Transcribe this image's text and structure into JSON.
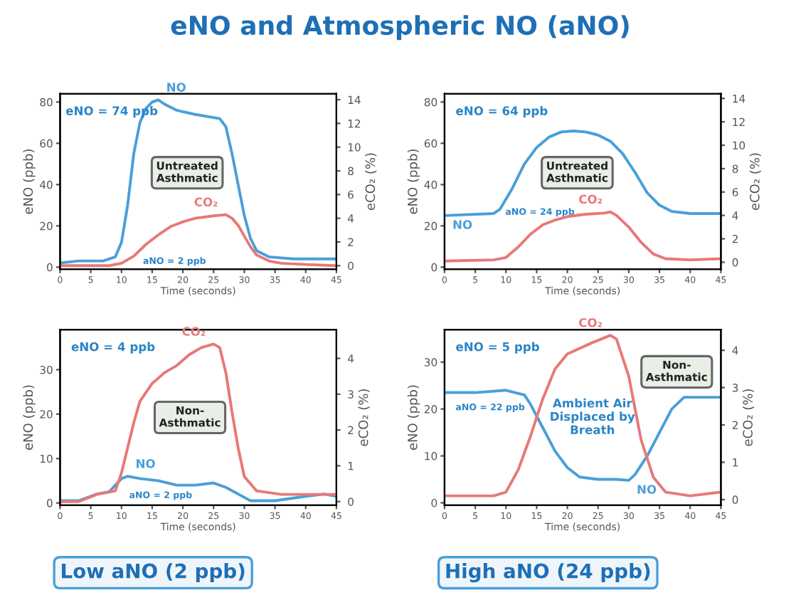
{
  "chart_data": [
    {
      "type": "line",
      "title": "eNO and Atmospheric NO (aNO)",
      "xlabel": "Time (seconds)",
      "ylabel": "eNO (ppb)",
      "y2label": "eCO₂ (%)",
      "xlim": [
        0,
        45
      ],
      "xticks": [
        0,
        5,
        10,
        15,
        20,
        25,
        30,
        35,
        40,
        45
      ],
      "ylim": [
        -1,
        84
      ],
      "yticks": [
        0,
        20,
        40,
        60,
        80
      ],
      "y2lim": [
        -0.3,
        14.5
      ],
      "y2ticks": [
        0,
        2,
        4,
        6,
        8,
        10,
        12,
        14
      ],
      "series": [
        {
          "name": "NO",
          "color": "#4a9fd8",
          "x": [
            0,
            3,
            7,
            9,
            10,
            11,
            12,
            13,
            14,
            15,
            16,
            17,
            19,
            22,
            26,
            27,
            28,
            29,
            30,
            31,
            32,
            34,
            38,
            45
          ],
          "values": [
            2,
            3,
            3,
            5,
            12,
            30,
            55,
            70,
            77,
            80,
            81,
            79,
            76,
            74,
            72,
            68,
            55,
            40,
            25,
            14,
            8,
            5,
            4,
            4
          ]
        },
        {
          "name": "CO₂",
          "color": "#e87878",
          "axis": "y2",
          "x": [
            0,
            8,
            10,
            12,
            14,
            16,
            18,
            20,
            22,
            25,
            27,
            28,
            29,
            30,
            31,
            32,
            34,
            36,
            40,
            45
          ],
          "values": [
            0,
            0,
            0.2,
            0.8,
            1.8,
            2.6,
            3.3,
            3.7,
            4.0,
            4.2,
            4.3,
            4.0,
            3.4,
            2.5,
            1.6,
            0.9,
            0.4,
            0.2,
            0.1,
            0
          ]
        }
      ],
      "annotations": [
        "eNO = 74 ppb",
        "Untreated\nAsthmatic",
        "aNO = 2 ppb"
      ]
    },
    {
      "type": "line",
      "xlabel": "Time (seconds)",
      "ylabel": "eNO (ppb)",
      "y2label": "eCO₂ (%)",
      "xlim": [
        0,
        45
      ],
      "xticks": [
        0,
        5,
        10,
        15,
        20,
        25,
        30,
        35,
        40,
        45
      ],
      "ylim": [
        -1,
        84
      ],
      "yticks": [
        0,
        20,
        40,
        60,
        80
      ],
      "y2lim": [
        -0.6,
        14.4
      ],
      "y2ticks": [
        0,
        2,
        4,
        6,
        8,
        10,
        12,
        14
      ],
      "series": [
        {
          "name": "NO",
          "color": "#4a9fd8",
          "x": [
            0,
            8,
            9,
            11,
            13,
            15,
            17,
            19,
            21,
            23,
            25,
            27,
            29,
            31,
            33,
            35,
            37,
            40,
            45
          ],
          "values": [
            25,
            26,
            28,
            38,
            50,
            58,
            63,
            65.5,
            66,
            65.5,
            64,
            61,
            55,
            46,
            36,
            30,
            27,
            26,
            26
          ]
        },
        {
          "name": "CO₂",
          "color": "#e87878",
          "axis": "y2",
          "x": [
            0,
            8,
            10,
            12,
            14,
            16,
            18,
            20,
            23,
            26,
            27,
            28,
            30,
            32,
            34,
            36,
            40,
            45
          ],
          "values": [
            0.1,
            0.2,
            0.4,
            1.3,
            2.4,
            3.2,
            3.6,
            3.9,
            4.1,
            4.2,
            4.3,
            4.0,
            3.0,
            1.7,
            0.7,
            0.3,
            0.2,
            0.3
          ]
        }
      ],
      "annotations": [
        "eNO = 64 ppb",
        "Untreated\nAsthmatic",
        "aNO = 24 ppb"
      ]
    },
    {
      "type": "line",
      "xlabel": "Time (seconds)",
      "ylabel": "eNO (ppb)",
      "y2label": "eCO₂ (%)",
      "xlim": [
        0,
        45
      ],
      "xticks": [
        0,
        5,
        10,
        15,
        20,
        25,
        30,
        35,
        40,
        45
      ],
      "ylim": [
        -0.5,
        39
      ],
      "yticks": [
        0,
        10,
        20,
        30
      ],
      "y2lim": [
        -0.1,
        4.8
      ],
      "y2ticks": [
        0,
        1,
        2,
        3,
        4
      ],
      "series": [
        {
          "name": "NO",
          "color": "#4a9fd8",
          "x": [
            0,
            3,
            6,
            8,
            9,
            10,
            11,
            13,
            16,
            19,
            22,
            25,
            27,
            29,
            31,
            35,
            40,
            43,
            45
          ],
          "values": [
            0.5,
            0.5,
            2,
            2.5,
            4,
            5.5,
            6,
            5.5,
            5,
            4,
            4,
            4.5,
            3.5,
            2,
            0.5,
            0.5,
            1.5,
            2,
            1.5
          ]
        },
        {
          "name": "CO₂",
          "color": "#e87878",
          "axis": "y2",
          "x": [
            0,
            3,
            6,
            9,
            10,
            11,
            12,
            13,
            15,
            17,
            19,
            21,
            23,
            25,
            26,
            27,
            28,
            29,
            30,
            32,
            36,
            40,
            45
          ],
          "values": [
            0,
            0,
            0.2,
            0.3,
            0.8,
            1.5,
            2.2,
            2.8,
            3.3,
            3.6,
            3.8,
            4.1,
            4.3,
            4.4,
            4.3,
            3.6,
            2.5,
            1.5,
            0.7,
            0.3,
            0.2,
            0.2,
            0.2
          ]
        }
      ],
      "annotations": [
        "eNO = 4 ppb",
        "Non-\nAsthmatic",
        "aNO = 2 ppb",
        "Low aNO (2 ppb)"
      ]
    },
    {
      "type": "line",
      "xlabel": "Time (seconds)",
      "ylabel": "eNO (ppb)",
      "y2label": "eCO₂ (%)",
      "xlim": [
        0,
        45
      ],
      "xticks": [
        0,
        5,
        10,
        15,
        20,
        25,
        30,
        35,
        40,
        45
      ],
      "ylim": [
        -0.5,
        36.9
      ],
      "yticks": [
        0,
        10,
        20,
        30
      ],
      "y2lim": [
        -0.15,
        4.55
      ],
      "y2ticks": [
        0,
        1,
        2,
        3,
        4
      ],
      "series": [
        {
          "name": "NO",
          "color": "#4a9fd8",
          "x": [
            0,
            5,
            10,
            13,
            14,
            16,
            18,
            20,
            22,
            25,
            28,
            30,
            31,
            33,
            35,
            37,
            39,
            45
          ],
          "values": [
            23.5,
            23.5,
            24,
            23,
            21,
            16,
            11,
            7.5,
            5.5,
            5,
            5,
            4.8,
            6,
            10,
            15,
            20,
            22.5,
            22.5
          ]
        },
        {
          "name": "CO₂",
          "color": "#e87878",
          "axis": "y2",
          "x": [
            0,
            8,
            10,
            12,
            14,
            16,
            18,
            20,
            24,
            27,
            28,
            30,
            32,
            34,
            36,
            40,
            45
          ],
          "values": [
            0.1,
            0.1,
            0.2,
            0.8,
            1.7,
            2.7,
            3.5,
            3.9,
            4.2,
            4.4,
            4.3,
            3.3,
            1.6,
            0.6,
            0.2,
            0.1,
            0.2
          ]
        }
      ],
      "annotations": [
        "eNO = 5 ppb",
        "Non-\nAsthmatic",
        "aNO = 22 ppb",
        "Ambient Air\nDisplaced by\nBreath",
        "High aNO (24 ppb)"
      ]
    }
  ]
}
